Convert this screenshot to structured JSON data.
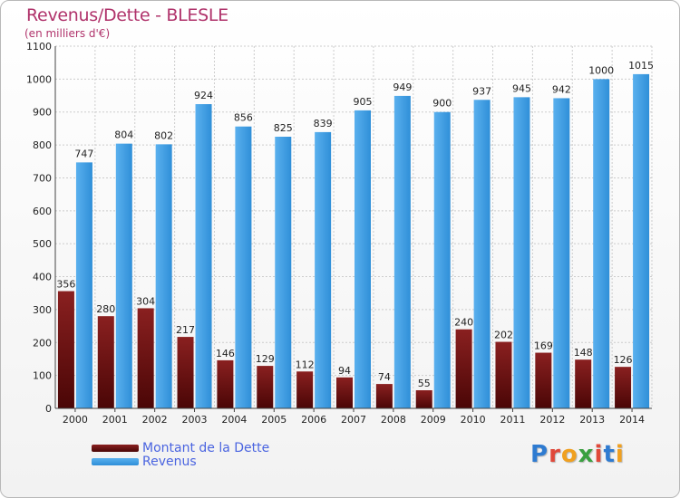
{
  "title": "Revenus/Dette - BLESLE",
  "subtitle": "(en milliers d'€)",
  "logo": {
    "text": "Proxiti",
    "colors": [
      "#2e7bd1",
      "#e0483a",
      "#f0a020",
      "#3aa040",
      "#e0483a",
      "#2e7bd1",
      "#f0a020"
    ]
  },
  "colors": {
    "dette": "#6e1414",
    "revenus": "#3d9ce3",
    "grid": "#cccccc",
    "axis_text": "#222222"
  },
  "chart_data": {
    "type": "bar",
    "title": "Revenus/Dette - BLESLE",
    "subtitle": "(en milliers d'€)",
    "xlabel": "",
    "ylabel": "",
    "ylim": [
      0,
      1100
    ],
    "yticks": [
      0,
      100,
      200,
      300,
      400,
      500,
      600,
      700,
      800,
      900,
      1000,
      1100
    ],
    "grid": true,
    "legend": "bottom-left",
    "categories": [
      "2000",
      "2001",
      "2002",
      "2003",
      "2004",
      "2005",
      "2006",
      "2007",
      "2008",
      "2009",
      "2010",
      "2011",
      "2012",
      "2013",
      "2014"
    ],
    "series": [
      {
        "name": "Montant de la Dette",
        "values": [
          356,
          280,
          304,
          217,
          146,
          129,
          112,
          94,
          74,
          55,
          240,
          202,
          169,
          148,
          126
        ]
      },
      {
        "name": "Revenus",
        "values": [
          747,
          804,
          802,
          924,
          856,
          825,
          839,
          905,
          949,
          900,
          937,
          945,
          942,
          1000,
          1015
        ]
      }
    ]
  }
}
